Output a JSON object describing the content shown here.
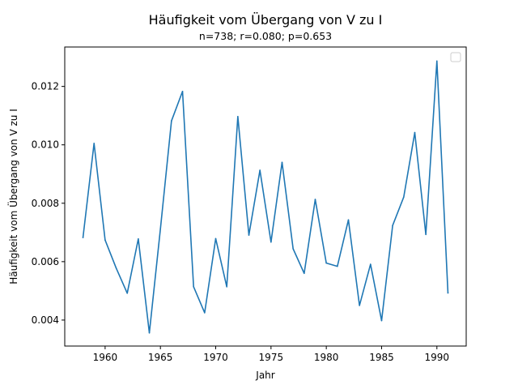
{
  "chart_data": {
    "type": "line",
    "title": "Häufigkeit vom Übergang von V zu I",
    "subtitle": "n=738; r=0.080; p=0.653",
    "xlabel": "Jahr",
    "ylabel": "Häufigkeit vom Übergang von V zu I",
    "xlim": [
      1956.35,
      1992.65
    ],
    "ylim": [
      0.00311,
      0.01335
    ],
    "xticks": [
      1960,
      1965,
      1970,
      1975,
      1980,
      1985,
      1990
    ],
    "xtick_labels": [
      "1960",
      "1965",
      "1970",
      "1975",
      "1980",
      "1985",
      "1990"
    ],
    "yticks": [
      0.004,
      0.006,
      0.008,
      0.01,
      0.012
    ],
    "ytick_labels": [
      "0.004",
      "0.006",
      "0.008",
      "0.010",
      "0.012"
    ],
    "legend": "top-right",
    "grid": false,
    "series": [
      {
        "color": "#1f77b4",
        "x": [
          1958,
          1959,
          1960,
          1961,
          1962,
          1963,
          1964,
          1965,
          1966,
          1967,
          1968,
          1969,
          1970,
          1971,
          1972,
          1973,
          1974,
          1975,
          1976,
          1977,
          1978,
          1979,
          1980,
          1981,
          1982,
          1983,
          1984,
          1985,
          1986,
          1987,
          1988,
          1989,
          1990,
          1991
        ],
        "y": [
          0.00683,
          0.01005,
          0.00674,
          0.00578,
          0.00492,
          0.00678,
          0.00356,
          0.00712,
          0.01082,
          0.01183,
          0.00514,
          0.00425,
          0.00679,
          0.00514,
          0.01097,
          0.00691,
          0.00913,
          0.00667,
          0.0094,
          0.00644,
          0.0056,
          0.00813,
          0.00595,
          0.00584,
          0.00743,
          0.0045,
          0.00591,
          0.00398,
          0.00724,
          0.00821,
          0.01042,
          0.00693,
          0.01287,
          0.00493
        ]
      }
    ]
  }
}
